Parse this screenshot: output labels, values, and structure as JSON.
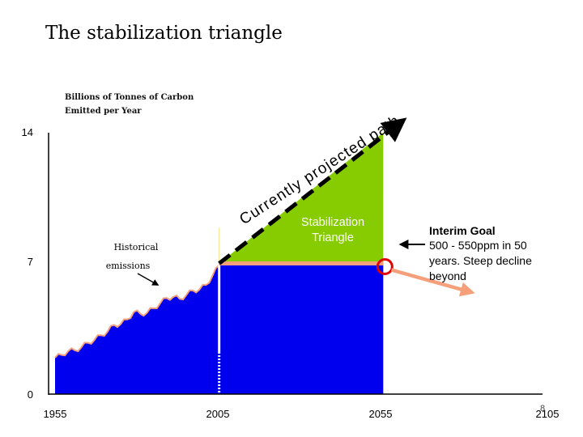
{
  "slide": {
    "title": "The stabilization triangle",
    "page_number": "8"
  },
  "chart_data": {
    "type": "area",
    "title": "The stabilization triangle",
    "ylabel_line1": "Billions of Tonnes of Carbon",
    "ylabel_line2": "Emitted per Year",
    "x_ticks": [
      1955,
      2005,
      2055,
      2105
    ],
    "y_ticks": [
      0,
      7,
      14
    ],
    "xlim": [
      1955,
      2105
    ],
    "ylim": [
      0,
      14
    ],
    "series": [
      {
        "name": "Historical emissions",
        "x": [
          1955,
          1957,
          1959,
          1961,
          1963,
          1965,
          1967,
          1969,
          1971,
          1973,
          1975,
          1977,
          1979,
          1981,
          1983,
          1985,
          1987,
          1989,
          1991,
          1993,
          1995,
          1997,
          1999,
          2001,
          2003,
          2005
        ],
        "y": [
          1.95,
          2.1,
          2.3,
          2.35,
          2.5,
          2.75,
          2.9,
          3.15,
          3.35,
          3.7,
          3.75,
          4.0,
          4.4,
          4.3,
          4.35,
          4.6,
          4.85,
          5.15,
          5.2,
          5.1,
          5.3,
          5.55,
          5.6,
          5.85,
          6.35,
          6.9
        ]
      },
      {
        "name": "Flat path (stabilization)",
        "x": [
          2005,
          2055
        ],
        "y": [
          7,
          7
        ]
      },
      {
        "name": "Currently projected path",
        "x": [
          2005,
          2055
        ],
        "y": [
          7,
          14
        ]
      }
    ],
    "annotations": {
      "projected_path": "Currently projected path",
      "triangle_line1": "Stabilization",
      "triangle_line2": "Triangle",
      "historical_line1": "Historical",
      "historical_line2": "emissions",
      "interim_title": "Interim Goal",
      "interim_line1": "500 - 550ppm in 50",
      "interim_line2": "years.  Steep decline",
      "interim_line3": "beyond"
    },
    "colors": {
      "history_fill": "#0000ee",
      "flat_fill": "#0000ee",
      "triangle_fill": "#86cc00",
      "flat_line": "#f5a07a",
      "projection_line": "#000000",
      "goal_circle": "#e00000",
      "goal_arrow": "#f5a07a"
    }
  }
}
